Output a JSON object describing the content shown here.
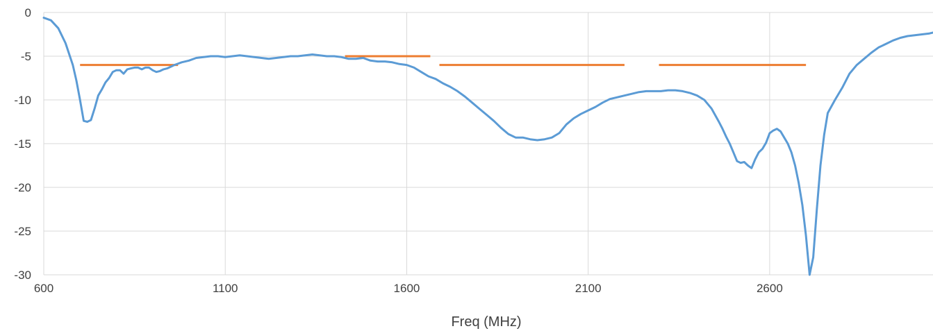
{
  "chart_data": {
    "type": "line",
    "title": "",
    "xlabel": "Freq (MHz)",
    "ylabel": "",
    "xlim": [
      600,
      3050
    ],
    "ylim": [
      -30,
      0
    ],
    "grid": true,
    "x_ticks": [
      600,
      1100,
      1600,
      2100,
      2600
    ],
    "x_tick_labels": [
      "600",
      "1100",
      "1600",
      "2100",
      "2600"
    ],
    "y_ticks": [
      0,
      -5,
      -10,
      -15,
      -20,
      -25,
      -30
    ],
    "y_tick_labels": [
      "0",
      "-5",
      "-10",
      "-15",
      "-20",
      "-25",
      "-30"
    ],
    "colors": {
      "s11": "#5b9bd5",
      "spec": "#ed7d31",
      "grid": "#d9d9d9"
    },
    "series": [
      {
        "x": [
          600,
          620,
          640,
          660,
          680,
          690,
          700,
          710,
          720,
          730,
          740,
          750,
          760,
          770,
          780,
          790,
          800,
          810,
          820,
          830,
          840,
          850,
          860,
          870,
          880,
          890,
          900,
          910,
          920,
          930,
          940,
          950,
          960,
          980,
          1000,
          1020,
          1040,
          1060,
          1080,
          1100,
          1120,
          1140,
          1160,
          1180,
          1200,
          1220,
          1240,
          1260,
          1280,
          1300,
          1320,
          1340,
          1360,
          1380,
          1400,
          1420,
          1440,
          1460,
          1480,
          1500,
          1520,
          1540,
          1560,
          1580,
          1600,
          1620,
          1640,
          1660,
          1680,
          1700,
          1720,
          1740,
          1760,
          1780,
          1800,
          1820,
          1840,
          1860,
          1880,
          1900,
          1920,
          1940,
          1960,
          1980,
          2000,
          2020,
          2040,
          2060,
          2080,
          2100,
          2120,
          2140,
          2160,
          2180,
          2200,
          2220,
          2240,
          2260,
          2280,
          2300,
          2320,
          2340,
          2360,
          2380,
          2400,
          2420,
          2440,
          2460,
          2470,
          2480,
          2490,
          2500,
          2510,
          2520,
          2530,
          2540,
          2550,
          2560,
          2570,
          2580,
          2590,
          2600,
          2610,
          2620,
          2630,
          2640,
          2650,
          2660,
          2670,
          2680,
          2690,
          2700,
          2710,
          2720,
          2730,
          2740,
          2750,
          2760,
          2780,
          2800,
          2820,
          2840,
          2860,
          2880,
          2900,
          2920,
          2940,
          2960,
          2980,
          3000,
          3020,
          3040,
          3050
        ],
        "values": [
          -0.6,
          -0.9,
          -1.8,
          -3.5,
          -6.0,
          -7.8,
          -10.0,
          -12.4,
          -12.5,
          -12.3,
          -11.0,
          -9.5,
          -8.8,
          -8.0,
          -7.5,
          -6.8,
          -6.6,
          -6.6,
          -7.0,
          -6.5,
          -6.4,
          -6.3,
          -6.3,
          -6.5,
          -6.3,
          -6.3,
          -6.6,
          -6.8,
          -6.7,
          -6.5,
          -6.4,
          -6.2,
          -6.0,
          -5.7,
          -5.5,
          -5.2,
          -5.1,
          -5.0,
          -5.0,
          -5.1,
          -5.0,
          -4.9,
          -5.0,
          -5.1,
          -5.2,
          -5.3,
          -5.2,
          -5.1,
          -5.0,
          -5.0,
          -4.9,
          -4.8,
          -4.9,
          -5.0,
          -5.0,
          -5.1,
          -5.3,
          -5.3,
          -5.2,
          -5.5,
          -5.6,
          -5.6,
          -5.7,
          -5.9,
          -6.0,
          -6.3,
          -6.8,
          -7.3,
          -7.6,
          -8.1,
          -8.5,
          -9.0,
          -9.6,
          -10.3,
          -11.0,
          -11.7,
          -12.4,
          -13.2,
          -13.9,
          -14.3,
          -14.3,
          -14.5,
          -14.6,
          -14.5,
          -14.3,
          -13.8,
          -12.8,
          -12.1,
          -11.6,
          -11.2,
          -10.8,
          -10.3,
          -9.9,
          -9.7,
          -9.5,
          -9.3,
          -9.1,
          -9.0,
          -9.0,
          -9.0,
          -8.9,
          -8.9,
          -9.0,
          -9.2,
          -9.5,
          -10.0,
          -11.0,
          -12.5,
          -13.3,
          -14.2,
          -15.0,
          -16.0,
          -17.0,
          -17.2,
          -17.1,
          -17.5,
          -17.8,
          -16.8,
          -16.0,
          -15.6,
          -14.9,
          -13.8,
          -13.5,
          -13.3,
          -13.6,
          -14.3,
          -15.0,
          -16.0,
          -17.5,
          -19.5,
          -22.0,
          -25.5,
          -30.0,
          -28.0,
          -22.5,
          -17.5,
          -14.0,
          -11.5,
          -10.0,
          -8.6,
          -7.0,
          -6.0,
          -5.3,
          -4.6,
          -4.0,
          -3.6,
          -3.2,
          -2.9,
          -2.7,
          -2.6,
          -2.5,
          -2.4,
          -2.3
        ]
      },
      {
        "segments": [
          {
            "x": [
              700,
              970
            ],
            "y": [
              -6,
              -6
            ]
          },
          {
            "x": [
              1430,
              1665
            ],
            "y": [
              -5,
              -5
            ]
          },
          {
            "x": [
              1690,
              2200
            ],
            "y": [
              -6,
              -6
            ]
          },
          {
            "x": [
              2295,
              2700
            ],
            "y": [
              -6,
              -6
            ]
          }
        ]
      }
    ]
  }
}
